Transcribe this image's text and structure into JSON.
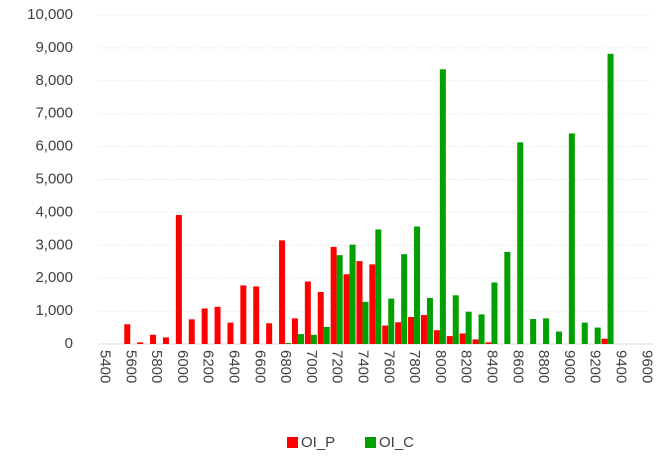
{
  "chart_data": {
    "type": "bar",
    "categories": [
      "5400",
      null,
      "5600",
      null,
      "5800",
      null,
      "6000",
      null,
      "6200",
      null,
      "6400",
      null,
      "6600",
      null,
      "6800",
      null,
      "7000",
      null,
      "7200",
      null,
      "7400",
      null,
      "7600",
      null,
      "7800",
      null,
      "8000",
      null,
      "8200",
      null,
      "8400",
      null,
      "8600",
      null,
      "8800",
      null,
      "9000",
      null,
      "9200",
      null,
      "9400",
      null,
      "9600"
    ],
    "series": [
      {
        "name": "OI_P",
        "color": "#ff0000",
        "values": [
          0,
          0,
          600,
          50,
          280,
          200,
          3920,
          750,
          1080,
          1130,
          650,
          1780,
          1750,
          630,
          3150,
          780,
          1900,
          1580,
          2950,
          2120,
          2520,
          2420,
          560,
          660,
          820,
          880,
          420,
          240,
          320,
          140,
          50,
          0,
          0,
          0,
          0,
          0,
          0,
          0,
          0,
          160,
          0,
          0,
          0
        ]
      },
      {
        "name": "OI_C",
        "color": "#00a000",
        "values": [
          0,
          0,
          0,
          0,
          0,
          0,
          0,
          0,
          0,
          0,
          0,
          0,
          0,
          0,
          30,
          300,
          280,
          520,
          2700,
          3020,
          1280,
          3480,
          1380,
          2730,
          3570,
          1400,
          8350,
          1480,
          980,
          900,
          1870,
          2800,
          6130,
          760,
          780,
          380,
          6400,
          650,
          500,
          8820,
          0,
          0,
          0
        ]
      }
    ],
    "ylim": [
      0,
      10000
    ],
    "yticks": [
      0,
      {
        "value": 1000,
        "label": "1,000"
      },
      {
        "value": 2000,
        "label": "2,000"
      },
      {
        "value": 3000,
        "label": "3,000"
      },
      {
        "value": 4000,
        "label": "4,000"
      },
      {
        "value": 5000,
        "label": "5,000"
      },
      {
        "value": 6000,
        "label": "6,000"
      },
      {
        "value": 7000,
        "label": "7,000"
      },
      {
        "value": 8000,
        "label": "8,000"
      },
      {
        "value": 9000,
        "label": "9,000"
      },
      {
        "value": 10000,
        "label": "10,000"
      }
    ],
    "grid": true,
    "legend": "bottom"
  }
}
